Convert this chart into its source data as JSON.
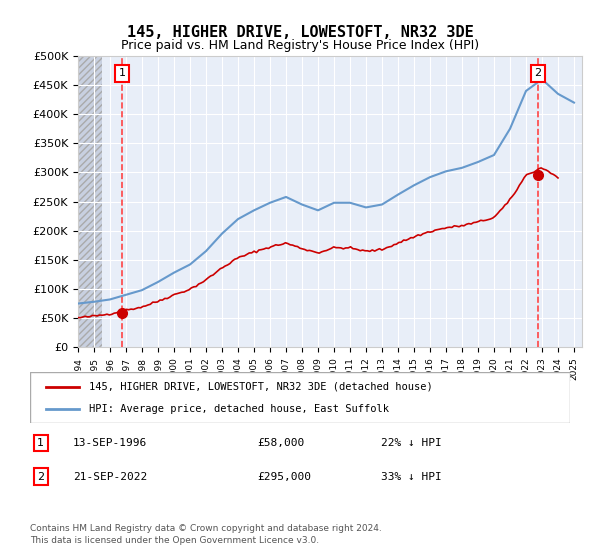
{
  "title": "145, HIGHER DRIVE, LOWESTOFT, NR32 3DE",
  "subtitle": "Price paid vs. HM Land Registry's House Price Index (HPI)",
  "sale1_date": "13-SEP-1996",
  "sale1_price": 58000,
  "sale1_label": "22% ↓ HPI",
  "sale2_date": "21-SEP-2022",
  "sale2_price": 295000,
  "sale2_label": "33% ↓ HPI",
  "legend_line1": "145, HIGHER DRIVE, LOWESTOFT, NR32 3DE (detached house)",
  "legend_line2": "HPI: Average price, detached house, East Suffolk",
  "footnote1": "Contains HM Land Registry data © Crown copyright and database right 2024.",
  "footnote2": "This data is licensed under the Open Government Licence v3.0.",
  "hpi_color": "#6699cc",
  "price_color": "#cc0000",
  "vline_color": "#ff4444",
  "background_plot": "#e8eef8",
  "background_hatch": "#d0d8e8",
  "ylim_max": 500000,
  "ylim_min": 0,
  "xlim_min": 1994.0,
  "xlim_max": 2025.5
}
